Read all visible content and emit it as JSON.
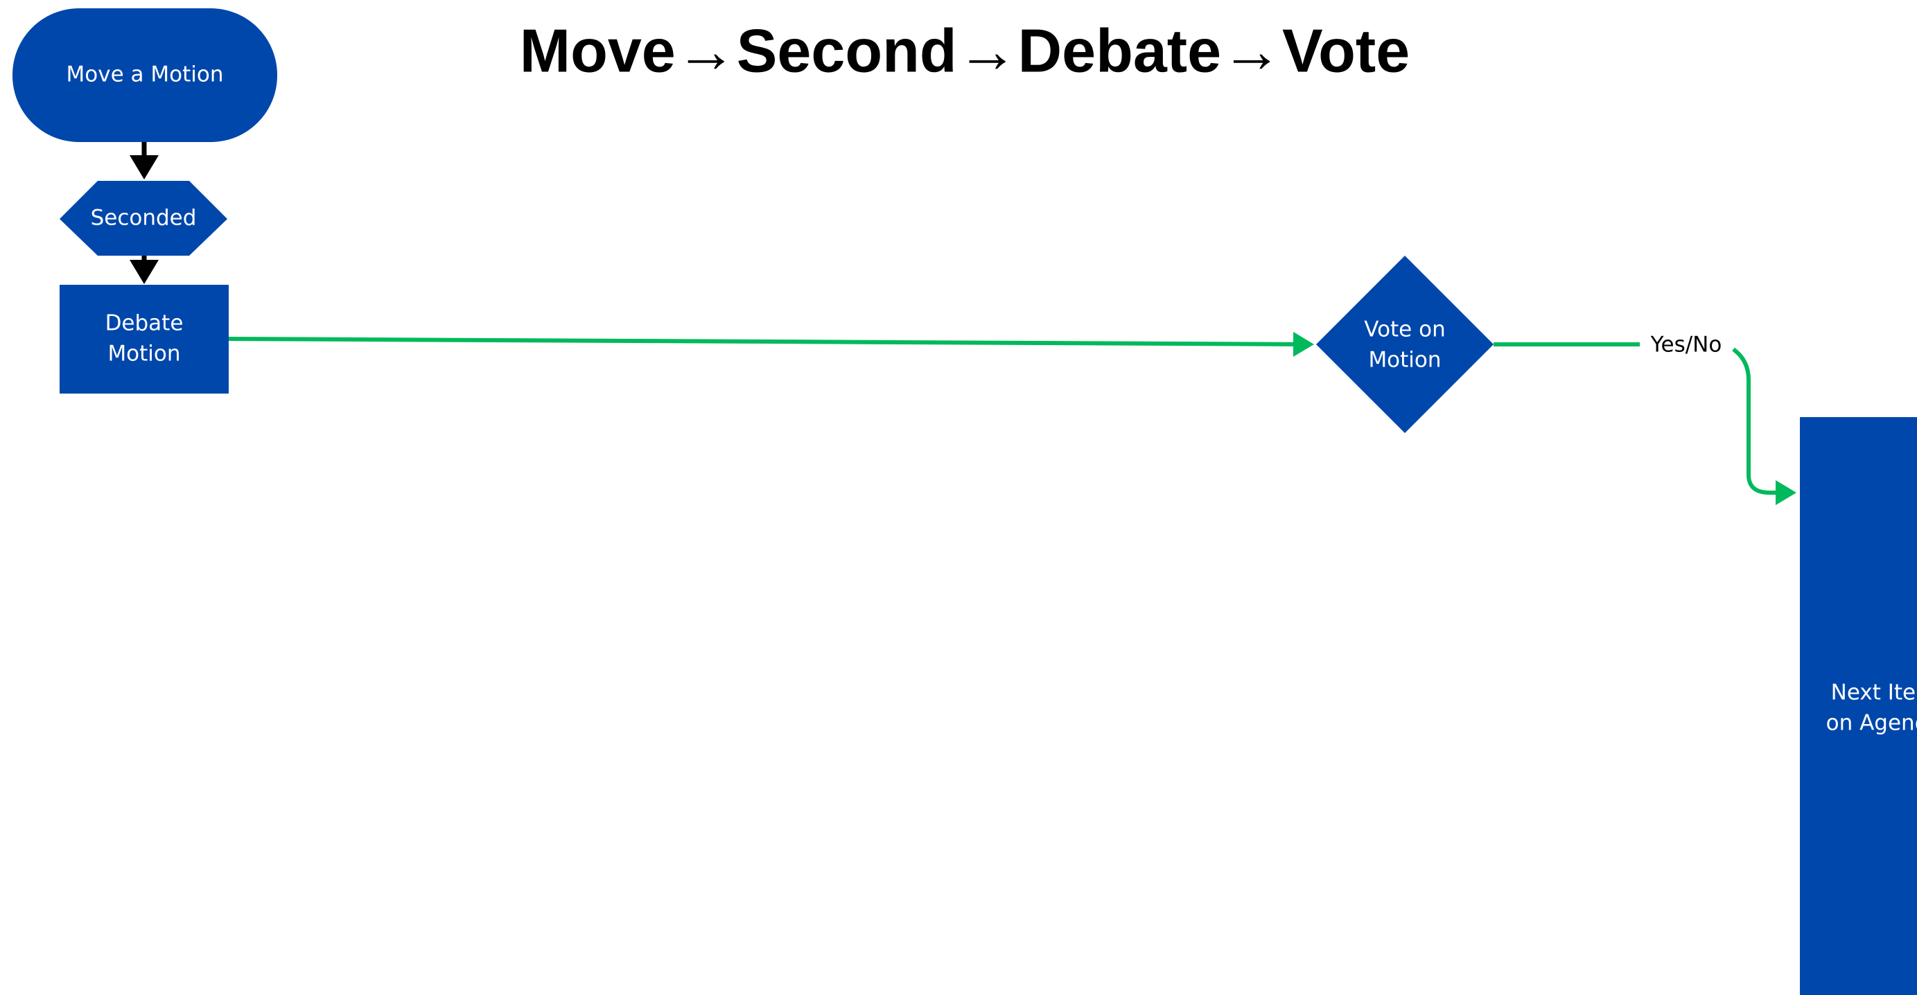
{
  "title": "Move→Second→Debate→Vote",
  "nodes": [
    {
      "lines": [
        "Move a Motion"
      ]
    },
    {
      "lines": [
        "Seconded"
      ]
    },
    {
      "lines": [
        "Debate",
        "Motion"
      ]
    },
    {
      "lines": [
        "Vote on",
        "Motion"
      ]
    },
    {
      "lines": [
        "Next Item",
        "on Agenda"
      ]
    }
  ],
  "edges": [
    {
      "label": "Yes/No"
    }
  ]
}
